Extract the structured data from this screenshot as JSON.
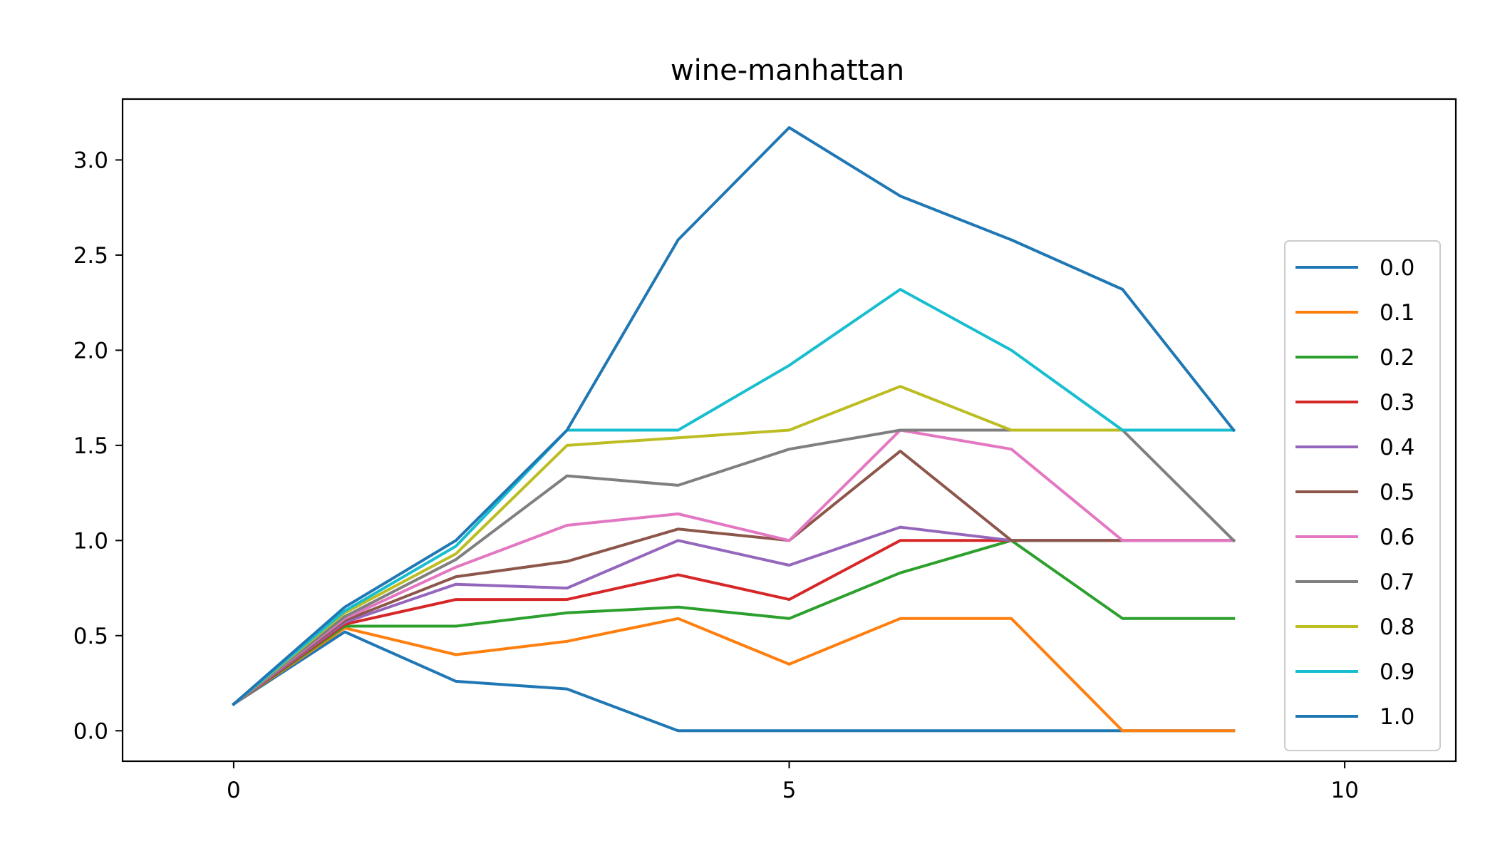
{
  "chart_data": {
    "type": "line",
    "title": "wine-manhattan",
    "xlabel": "",
    "ylabel": "",
    "xlim": [
      -1,
      11
    ],
    "ylim": [
      -0.16,
      3.32
    ],
    "xticks": [
      0,
      5,
      10
    ],
    "xtick_labels": [
      "0",
      "5",
      "10"
    ],
    "yticks": [
      0.0,
      0.5,
      1.0,
      1.5,
      2.0,
      2.5,
      3.0
    ],
    "ytick_labels": [
      "0.0",
      "0.5",
      "1.0",
      "1.5",
      "2.0",
      "2.5",
      "3.0"
    ],
    "grid": false,
    "legend_position": "right",
    "x": [
      0,
      1,
      2,
      3,
      4,
      5,
      6,
      7,
      8,
      9
    ],
    "series": [
      {
        "name": "0.0",
        "color": "#1f77b4",
        "values": [
          0.14,
          0.52,
          0.26,
          0.22,
          0.0,
          0.0,
          0.0,
          0.0,
          0.0,
          0.0
        ]
      },
      {
        "name": "0.1",
        "color": "#ff7f0e",
        "values": [
          0.14,
          0.54,
          0.4,
          0.47,
          0.59,
          0.35,
          0.59,
          0.59,
          0.0,
          0.0
        ]
      },
      {
        "name": "0.2",
        "color": "#2ca02c",
        "values": [
          0.14,
          0.55,
          0.55,
          0.62,
          0.65,
          0.59,
          0.83,
          1.0,
          0.59,
          0.59
        ]
      },
      {
        "name": "0.3",
        "color": "#d62728",
        "values": [
          0.14,
          0.56,
          0.69,
          0.69,
          0.82,
          0.69,
          1.0,
          1.0,
          1.0,
          1.0
        ]
      },
      {
        "name": "0.4",
        "color": "#9467bd",
        "values": [
          0.14,
          0.57,
          0.77,
          0.75,
          1.0,
          0.87,
          1.07,
          1.0,
          1.0,
          1.0
        ]
      },
      {
        "name": "0.5",
        "color": "#8c564b",
        "values": [
          0.14,
          0.58,
          0.81,
          0.89,
          1.06,
          1.0,
          1.47,
          1.0,
          1.0,
          1.0
        ]
      },
      {
        "name": "0.6",
        "color": "#e377c2",
        "values": [
          0.14,
          0.59,
          0.86,
          1.08,
          1.14,
          1.0,
          1.58,
          1.48,
          1.0,
          1.0
        ]
      },
      {
        "name": "0.7",
        "color": "#7f7f7f",
        "values": [
          0.14,
          0.6,
          0.9,
          1.34,
          1.29,
          1.48,
          1.58,
          1.58,
          1.58,
          1.0
        ]
      },
      {
        "name": "0.8",
        "color": "#bcbd22",
        "values": [
          0.14,
          0.62,
          0.93,
          1.5,
          1.54,
          1.58,
          1.81,
          1.58,
          1.58,
          1.58
        ]
      },
      {
        "name": "0.9",
        "color": "#17becf",
        "values": [
          0.14,
          0.63,
          0.97,
          1.58,
          1.58,
          1.92,
          2.32,
          2.0,
          1.58,
          1.58
        ]
      },
      {
        "name": "1.0",
        "color": "#1f77b4",
        "values": [
          0.14,
          0.65,
          1.0,
          1.58,
          2.58,
          3.17,
          2.81,
          2.58,
          2.32,
          1.58
        ]
      }
    ]
  }
}
